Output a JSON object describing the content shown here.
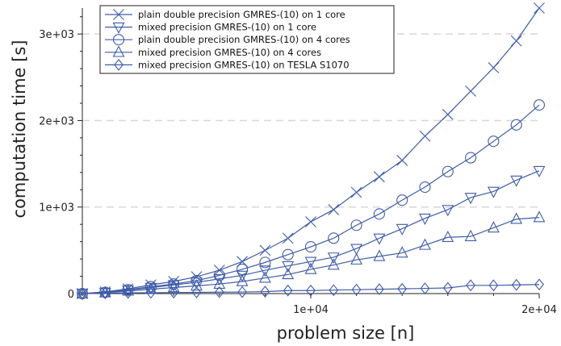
{
  "chart_data": {
    "type": "line",
    "title": "",
    "xlabel": "problem size [n]",
    "ylabel": "computation time [s]",
    "xlim": [
      0,
      20000
    ],
    "ylim": [
      0,
      3300
    ],
    "x_ticks": [
      {
        "value": 10000,
        "label": "1e+04"
      },
      {
        "value": 20000,
        "label": "2e+04"
      }
    ],
    "y_ticks": [
      {
        "value": 0,
        "label": "0"
      },
      {
        "value": 1000,
        "label": "1e+03"
      },
      {
        "value": 2000,
        "label": "2e+03"
      },
      {
        "value": 3000,
        "label": "3e+03"
      }
    ],
    "grid": "horizontal dashed",
    "legend_position": "top-left",
    "line_color": "#3f5ca8",
    "x": [
      0,
      1000,
      2000,
      3000,
      4000,
      5000,
      6000,
      7000,
      8000,
      9000,
      10000,
      11000,
      12000,
      13000,
      14000,
      15000,
      16000,
      17000,
      18000,
      19000,
      20000
    ],
    "series": [
      {
        "name": "plain double precision GMRES-(10) on 1 core",
        "marker": "x",
        "values": [
          0,
          20,
          55,
          100,
          140,
          195,
          270,
          370,
          500,
          640,
          830,
          970,
          1170,
          1350,
          1540,
          1820,
          2070,
          2340,
          2610,
          2920,
          3300
        ]
      },
      {
        "name": "mixed precision GMRES-(10) on 1 core",
        "marker": "triangle-down",
        "values": [
          0,
          10,
          40,
          70,
          100,
          130,
          170,
          210,
          270,
          320,
          370,
          420,
          520,
          640,
          750,
          870,
          970,
          1110,
          1180,
          1310,
          1420
        ]
      },
      {
        "name": "plain double precision GMRES-(10) on 4 cores",
        "marker": "circle",
        "values": [
          0,
          15,
          45,
          80,
          110,
          150,
          210,
          280,
          360,
          450,
          540,
          640,
          790,
          920,
          1080,
          1230,
          1410,
          1570,
          1760,
          1950,
          2180
        ]
      },
      {
        "name": "mixed precision GMRES-(10) on 4 cores",
        "marker": "triangle-up",
        "values": [
          0,
          10,
          30,
          50,
          70,
          90,
          110,
          140,
          180,
          220,
          280,
          330,
          390,
          430,
          470,
          560,
          650,
          660,
          760,
          860,
          880
        ]
      },
      {
        "name": "mixed precision GMRES-(10) on TESLA S1070",
        "marker": "diamond",
        "values": [
          0,
          5,
          8,
          10,
          12,
          14,
          16,
          18,
          22,
          35,
          35,
          40,
          45,
          50,
          55,
          60,
          65,
          95,
          95,
          100,
          105
        ]
      }
    ]
  }
}
